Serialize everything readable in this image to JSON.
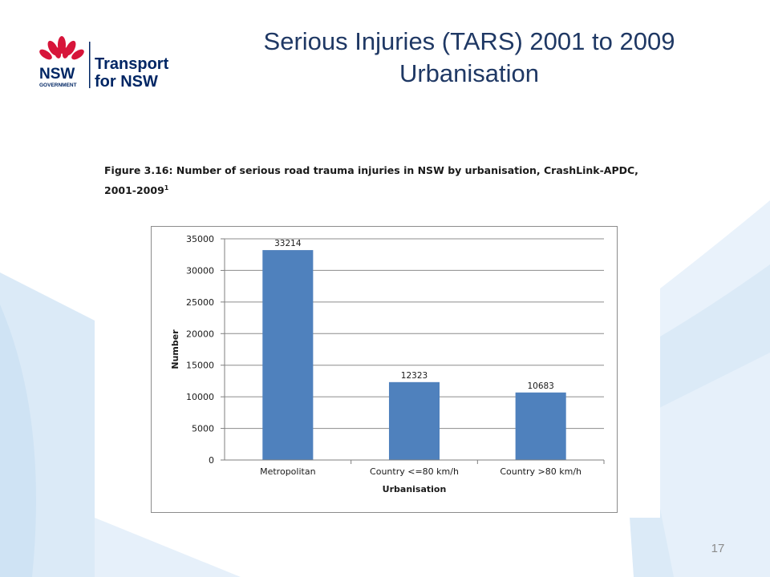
{
  "slide": {
    "title_line1": "Serious Injuries (TARS) 2001 to 2009",
    "title_line2": "Urbanisation",
    "page_number": "17"
  },
  "logo": {
    "wordmark": "NSW",
    "sub": "GOVERNMENT",
    "name_line1": "Transport",
    "name_line2": "for NSW"
  },
  "figure": {
    "caption_line1": "Figure 3.16: Number of serious road trauma injuries in NSW by urbanisation, CrashLink-APDC,",
    "caption_line2": "2001-2009",
    "caption_sup": "1"
  },
  "chart_data": {
    "type": "bar",
    "categories": [
      "Metropolitan",
      "Country <=80 km/h",
      "Country >80 km/h"
    ],
    "values": [
      33214,
      12323,
      10683
    ],
    "data_labels": [
      "33214",
      "12323",
      "10683"
    ],
    "xlabel": "Urbanisation",
    "ylabel": "Number",
    "ylim": [
      0,
      35000
    ],
    "yticks": [
      0,
      5000,
      10000,
      15000,
      20000,
      25000,
      30000,
      35000
    ],
    "grid": true,
    "legend": "none",
    "bar_color": "#4f81bd"
  },
  "colors": {
    "title": "#1f3864",
    "waratah_red": "#d7153a",
    "navy": "#002664",
    "deco_blue": "#dbeaf7"
  }
}
